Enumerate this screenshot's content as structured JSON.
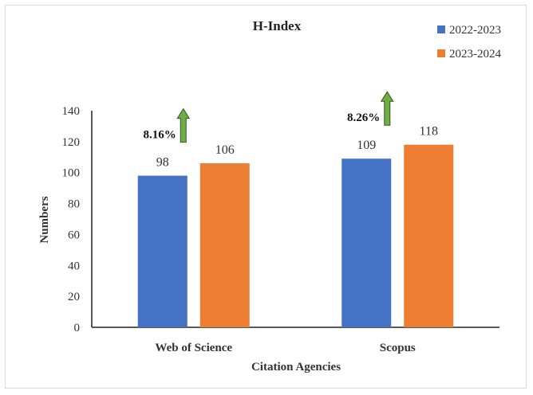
{
  "chart_data": {
    "type": "bar",
    "title": "H-Index",
    "xlabel": "Citation Agencies",
    "ylabel": "Numbers",
    "categories": [
      "Web of Science",
      "Scopus"
    ],
    "series": [
      {
        "name": "2022-2023",
        "values": [
          98,
          109
        ],
        "color": "#4472c4"
      },
      {
        "name": "2023-2024",
        "values": [
          106,
          118
        ],
        "color": "#ed7d31"
      }
    ],
    "ylim": [
      0,
      140
    ],
    "yticks": [
      0,
      20,
      40,
      60,
      80,
      100,
      120,
      140
    ],
    "grid": false,
    "legend": "top-right",
    "annotations": [
      {
        "category": "Web of Science",
        "text": "8.16%",
        "icon": "up-arrow-icon",
        "color": "#70ad47"
      },
      {
        "category": "Scopus",
        "text": "8.26%",
        "icon": "up-arrow-icon",
        "color": "#70ad47"
      }
    ]
  }
}
